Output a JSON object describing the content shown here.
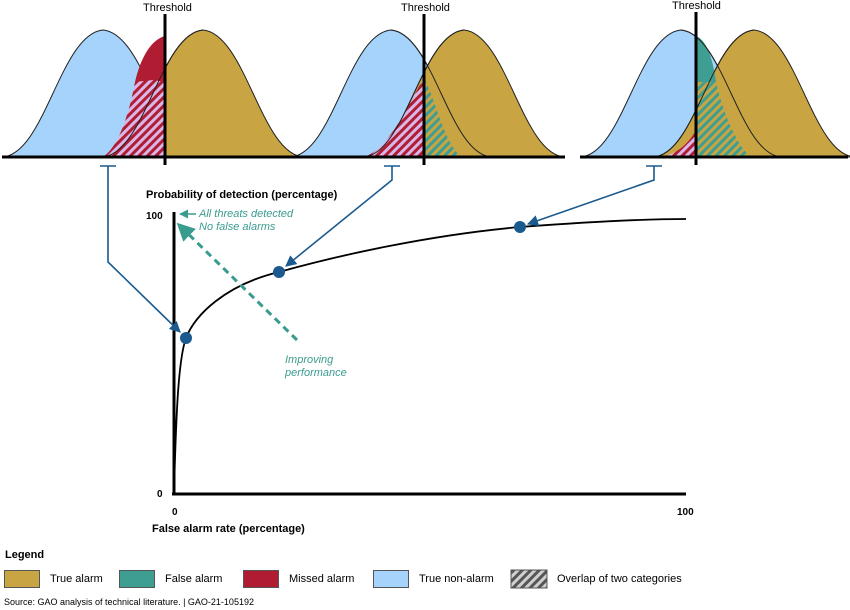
{
  "thresholds": [
    "Threshold",
    "Threshold",
    "Threshold"
  ],
  "axes": {
    "y_title": "Probability of detection (percentage)",
    "x_title": "False alarm rate (percentage)",
    "y_ticks": [
      "100",
      "0"
    ],
    "x_ticks": [
      "0",
      "100"
    ]
  },
  "annotations": {
    "ideal_line1": "All threats detected",
    "ideal_line2": "No false alarms",
    "improving_line1": "Improving",
    "improving_line2": "performance"
  },
  "legend": {
    "title": "Legend",
    "items": [
      {
        "label": "True alarm",
        "color": "#c8a542"
      },
      {
        "label": "False alarm",
        "color": "#3f9e92"
      },
      {
        "label": "Missed alarm",
        "color": "#b01c32"
      },
      {
        "label": "True non-alarm",
        "color": "#a6d3fb"
      },
      {
        "label": "Overlap of two categories",
        "color": "#888888"
      }
    ]
  },
  "source": "Source: GAO analysis of technical literature.  |  GAO-21-105192",
  "colors": {
    "true_alarm": "#c8a542",
    "false_alarm": "#3f9e92",
    "missed_alarm": "#b01c32",
    "true_non_alarm": "#a6d3fb",
    "arrow": "#1a5a8e",
    "annotation": "#3a9b8f"
  }
}
